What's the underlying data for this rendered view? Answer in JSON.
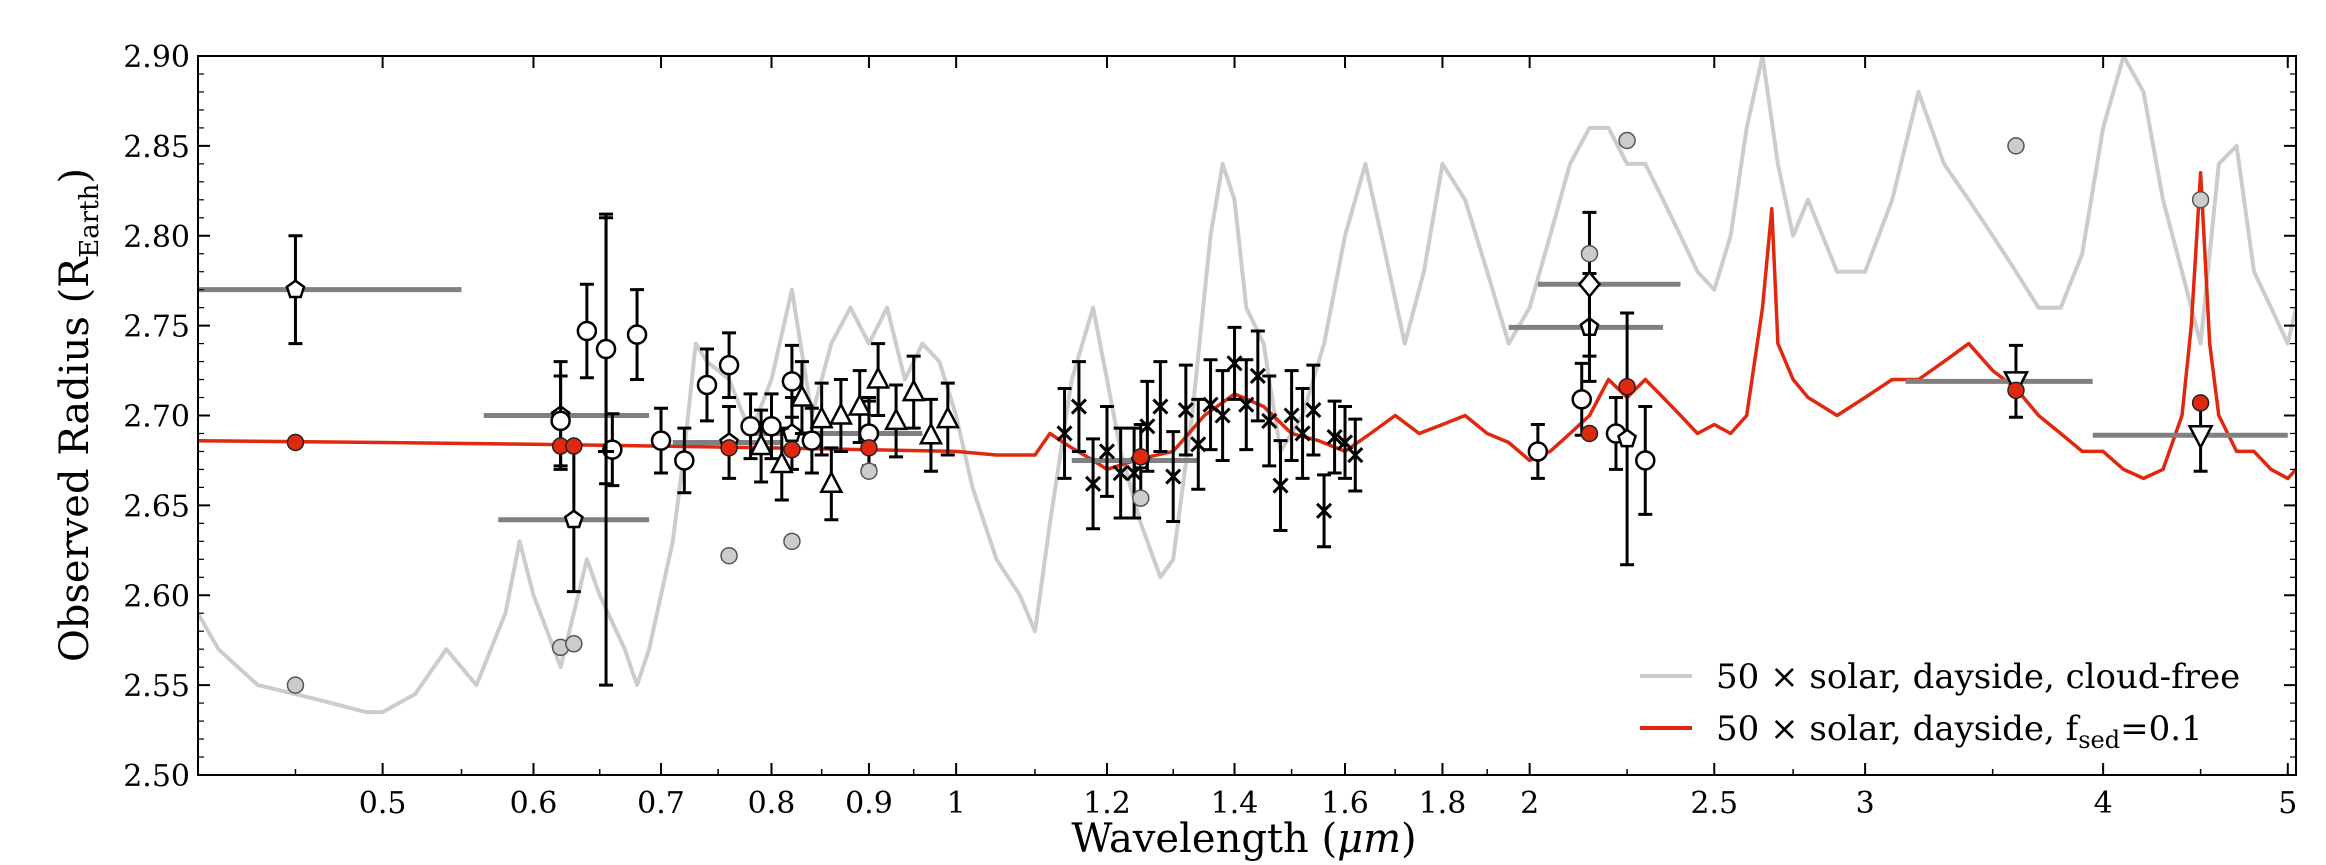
{
  "chart_data": {
    "type": "line",
    "xlabel": "Wavelength (μm)",
    "xlabel_prefix": "Wavelength (",
    "xlabel_unit": "μm",
    "xlabel_suffix": ")",
    "ylabel": "Observed Radius (R_Earth)",
    "ylabel_prefix": "Observed Radius (R",
    "ylabel_sub": "Earth",
    "ylabel_suffix": ")",
    "x_scale": "log",
    "xlim": [
      0.4,
      5.05
    ],
    "ylim": [
      2.5,
      2.9
    ],
    "x_ticks": [
      {
        "value": 0.5,
        "label": "0.5"
      },
      {
        "value": 0.6,
        "label": "0.6"
      },
      {
        "value": 0.7,
        "label": "0.7"
      },
      {
        "value": 0.8,
        "label": "0.8"
      },
      {
        "value": 0.9,
        "label": "0.9"
      },
      {
        "value": 1.0,
        "label": "1"
      },
      {
        "value": 1.2,
        "label": "1.2"
      },
      {
        "value": 1.4,
        "label": "1.4"
      },
      {
        "value": 1.6,
        "label": "1.6"
      },
      {
        "value": 1.8,
        "label": "1.8"
      },
      {
        "value": 2.0,
        "label": "2"
      },
      {
        "value": 2.5,
        "label": "2.5"
      },
      {
        "value": 3.0,
        "label": "3"
      },
      {
        "value": 4.0,
        "label": "4"
      },
      {
        "value": 5.0,
        "label": "5"
      }
    ],
    "y_ticks": [
      {
        "value": 2.5,
        "label": "2.50"
      },
      {
        "value": 2.55,
        "label": "2.55"
      },
      {
        "value": 2.6,
        "label": "2.60"
      },
      {
        "value": 2.65,
        "label": "2.65"
      },
      {
        "value": 2.7,
        "label": "2.70"
      },
      {
        "value": 2.75,
        "label": "2.75"
      },
      {
        "value": 2.8,
        "label": "2.80"
      },
      {
        "value": 2.85,
        "label": "2.85"
      },
      {
        "value": 2.9,
        "label": "2.90"
      }
    ],
    "legend_position": "lower-right",
    "models": [
      {
        "name": "50 × solar, dayside, cloud-free",
        "legend_text": "50 × solar, dayside, cloud-free",
        "color": "#cccccc",
        "x": [
          0.4,
          0.41,
          0.43,
          0.45,
          0.47,
          0.49,
          0.5,
          0.52,
          0.54,
          0.56,
          0.58,
          0.59,
          0.6,
          0.61,
          0.62,
          0.64,
          0.65,
          0.67,
          0.68,
          0.69,
          0.7,
          0.71,
          0.72,
          0.73,
          0.74,
          0.76,
          0.78,
          0.8,
          0.82,
          0.84,
          0.86,
          0.88,
          0.9,
          0.92,
          0.94,
          0.96,
          0.98,
          1.0,
          1.02,
          1.05,
          1.08,
          1.1,
          1.12,
          1.15,
          1.18,
          1.2,
          1.22,
          1.25,
          1.28,
          1.3,
          1.33,
          1.36,
          1.38,
          1.4,
          1.42,
          1.45,
          1.48,
          1.52,
          1.56,
          1.6,
          1.64,
          1.68,
          1.72,
          1.76,
          1.8,
          1.85,
          1.9,
          1.95,
          2.0,
          2.05,
          2.1,
          2.15,
          2.2,
          2.25,
          2.3,
          2.35,
          2.4,
          2.45,
          2.5,
          2.55,
          2.6,
          2.65,
          2.7,
          2.75,
          2.8,
          2.9,
          3.0,
          3.1,
          3.2,
          3.3,
          3.4,
          3.5,
          3.6,
          3.7,
          3.8,
          3.9,
          4.0,
          4.1,
          4.2,
          4.3,
          4.4,
          4.5,
          4.6,
          4.7,
          4.8,
          4.9,
          5.0,
          5.05
        ],
        "y": [
          2.59,
          2.57,
          2.55,
          2.545,
          2.54,
          2.535,
          2.535,
          2.545,
          2.57,
          2.55,
          2.59,
          2.63,
          2.6,
          2.58,
          2.56,
          2.62,
          2.6,
          2.57,
          2.55,
          2.57,
          2.6,
          2.63,
          2.68,
          2.74,
          2.73,
          2.72,
          2.69,
          2.72,
          2.77,
          2.7,
          2.74,
          2.76,
          2.74,
          2.76,
          2.72,
          2.74,
          2.73,
          2.7,
          2.66,
          2.62,
          2.6,
          2.58,
          2.64,
          2.72,
          2.76,
          2.72,
          2.68,
          2.64,
          2.61,
          2.62,
          2.7,
          2.8,
          2.84,
          2.82,
          2.76,
          2.74,
          2.68,
          2.7,
          2.74,
          2.8,
          2.84,
          2.79,
          2.74,
          2.78,
          2.84,
          2.82,
          2.78,
          2.74,
          2.76,
          2.8,
          2.84,
          2.86,
          2.86,
          2.84,
          2.84,
          2.82,
          2.8,
          2.78,
          2.77,
          2.8,
          2.86,
          2.9,
          2.84,
          2.8,
          2.82,
          2.78,
          2.78,
          2.82,
          2.88,
          2.84,
          2.82,
          2.8,
          2.78,
          2.76,
          2.76,
          2.79,
          2.86,
          2.9,
          2.88,
          2.82,
          2.78,
          2.74,
          2.84,
          2.85,
          2.78,
          2.76,
          2.74,
          2.76
        ]
      },
      {
        "name": "50 × solar, dayside, f_sed=0.1",
        "legend_text_prefix": "50 × solar, dayside, f",
        "legend_text_sub": "sed",
        "legend_text_suffix": "=0.1",
        "color": "#e0280f",
        "x": [
          0.4,
          0.5,
          0.6,
          0.7,
          0.8,
          0.9,
          1.0,
          1.05,
          1.1,
          1.12,
          1.15,
          1.18,
          1.2,
          1.25,
          1.3,
          1.35,
          1.4,
          1.45,
          1.5,
          1.55,
          1.6,
          1.65,
          1.7,
          1.75,
          1.8,
          1.85,
          1.9,
          1.95,
          2.0,
          2.05,
          2.1,
          2.15,
          2.2,
          2.25,
          2.3,
          2.35,
          2.4,
          2.45,
          2.5,
          2.55,
          2.6,
          2.65,
          2.68,
          2.7,
          2.75,
          2.8,
          2.85,
          2.9,
          3.0,
          3.1,
          3.2,
          3.3,
          3.4,
          3.5,
          3.6,
          3.7,
          3.8,
          3.9,
          4.0,
          4.1,
          4.2,
          4.3,
          4.4,
          4.45,
          4.5,
          4.55,
          4.6,
          4.7,
          4.8,
          4.9,
          5.0,
          5.05
        ],
        "y": [
          2.686,
          2.685,
          2.684,
          2.683,
          2.682,
          2.681,
          2.68,
          2.678,
          2.678,
          2.69,
          2.682,
          2.675,
          2.67,
          2.676,
          2.68,
          2.7,
          2.712,
          2.705,
          2.69,
          2.686,
          2.68,
          2.69,
          2.7,
          2.69,
          2.695,
          2.7,
          2.69,
          2.685,
          2.675,
          2.68,
          2.69,
          2.7,
          2.72,
          2.71,
          2.72,
          2.71,
          2.7,
          2.69,
          2.695,
          2.69,
          2.7,
          2.76,
          2.815,
          2.74,
          2.72,
          2.71,
          2.705,
          2.7,
          2.71,
          2.72,
          2.72,
          2.73,
          2.74,
          2.725,
          2.715,
          2.7,
          2.69,
          2.68,
          2.68,
          2.67,
          2.665,
          2.67,
          2.7,
          2.75,
          2.835,
          2.74,
          2.7,
          2.68,
          2.68,
          2.67,
          2.665,
          2.67
        ]
      }
    ],
    "model_points": [
      {
        "x": 0.45,
        "y": 2.685
      },
      {
        "x": 0.62,
        "y": 2.683
      },
      {
        "x": 0.63,
        "y": 2.683
      },
      {
        "x": 0.76,
        "y": 2.682
      },
      {
        "x": 0.82,
        "y": 2.681
      },
      {
        "x": 0.9,
        "y": 2.682
      },
      {
        "x": 1.25,
        "y": 2.677
      },
      {
        "x": 2.15,
        "y": 2.69
      },
      {
        "x": 2.25,
        "y": 2.716
      },
      {
        "x": 3.6,
        "y": 2.714
      },
      {
        "x": 4.5,
        "y": 2.707
      }
    ],
    "cloudfree_points": [
      {
        "x": 0.45,
        "y": 2.55
      },
      {
        "x": 0.62,
        "y": 2.571
      },
      {
        "x": 0.63,
        "y": 2.573
      },
      {
        "x": 0.76,
        "y": 2.622
      },
      {
        "x": 0.82,
        "y": 2.63
      },
      {
        "x": 0.9,
        "y": 2.669
      },
      {
        "x": 1.25,
        "y": 2.654
      },
      {
        "x": 2.15,
        "y": 2.79
      },
      {
        "x": 2.25,
        "y": 2.853
      },
      {
        "x": 3.6,
        "y": 2.85
      },
      {
        "x": 4.5,
        "y": 2.82
      }
    ],
    "band_observations": [
      {
        "x": 0.45,
        "y": 2.77,
        "err": 0.03,
        "xlo": 0.4,
        "xhi": 0.55,
        "marker": "pentagon"
      },
      {
        "x": 0.62,
        "y": 2.7,
        "err": 0.03,
        "xlo": 0.565,
        "xhi": 0.69,
        "marker": "pentagon"
      },
      {
        "x": 0.63,
        "y": 2.642,
        "err": 0.04,
        "xlo": 0.575,
        "xhi": 0.69,
        "marker": "pentagon"
      },
      {
        "x": 0.76,
        "y": 2.685,
        "err": 0.02,
        "xlo": 0.71,
        "xhi": 0.81,
        "marker": "pentagon"
      },
      {
        "x": 0.82,
        "y": 2.69,
        "err": 0.02,
        "xlo": 0.78,
        "xhi": 0.87,
        "marker": "pentagon"
      },
      {
        "x": 0.9,
        "y": 2.69,
        "err": 0.02,
        "xlo": 0.85,
        "xhi": 0.96,
        "marker": "pentagon"
      },
      {
        "x": 1.25,
        "y": 2.675,
        "err": 0.02,
        "xlo": 1.15,
        "xhi": 1.34,
        "marker": "pentagon"
      },
      {
        "x": 2.15,
        "y": 2.749,
        "err": 0.03,
        "xlo": 1.95,
        "xhi": 2.35,
        "marker": "pentagon"
      },
      {
        "x": 2.15,
        "y": 2.773,
        "err": 0.04,
        "xlo": 2.02,
        "xhi": 2.4,
        "marker": "diamond"
      },
      {
        "x": 3.6,
        "y": 2.719,
        "err": 0.02,
        "xlo": 3.15,
        "xhi": 3.95,
        "marker": "down-triangle"
      },
      {
        "x": 4.5,
        "y": 2.689,
        "err": 0.02,
        "xlo": 3.95,
        "xhi": 5.0,
        "marker": "down-triangle"
      }
    ],
    "observations": [
      {
        "x": 0.62,
        "y": 2.697,
        "err": 0.025,
        "marker": "circle"
      },
      {
        "x": 0.64,
        "y": 2.747,
        "err": 0.026,
        "marker": "circle"
      },
      {
        "x": 0.655,
        "y": 2.737,
        "err": 0.075,
        "marker": "circle"
      },
      {
        "x": 0.66,
        "y": 2.681,
        "err": 0.02,
        "marker": "circle"
      },
      {
        "x": 0.68,
        "y": 2.745,
        "err": 0.025,
        "marker": "circle"
      },
      {
        "x": 0.7,
        "y": 2.686,
        "err": 0.018,
        "marker": "circle"
      },
      {
        "x": 0.72,
        "y": 2.675,
        "err": 0.018,
        "marker": "circle"
      },
      {
        "x": 0.74,
        "y": 2.717,
        "err": 0.02,
        "marker": "circle"
      },
      {
        "x": 0.76,
        "y": 2.728,
        "err": 0.018,
        "marker": "circle"
      },
      {
        "x": 0.78,
        "y": 2.694,
        "err": 0.018,
        "marker": "circle"
      },
      {
        "x": 0.8,
        "y": 2.694,
        "err": 0.018,
        "marker": "circle"
      },
      {
        "x": 0.82,
        "y": 2.719,
        "err": 0.02,
        "marker": "circle"
      },
      {
        "x": 0.84,
        "y": 2.686,
        "err": 0.018,
        "marker": "circle"
      },
      {
        "x": 0.9,
        "y": 2.69,
        "err": 0.018,
        "marker": "circle"
      },
      {
        "x": 0.655,
        "y": 2.68,
        "err": 0.13,
        "marker": "plus"
      },
      {
        "x": 0.79,
        "y": 2.683,
        "err": 0.02,
        "marker": "up-triangle"
      },
      {
        "x": 0.81,
        "y": 2.673,
        "err": 0.02,
        "marker": "up-triangle"
      },
      {
        "x": 0.83,
        "y": 2.71,
        "err": 0.02,
        "marker": "up-triangle"
      },
      {
        "x": 0.85,
        "y": 2.698,
        "err": 0.02,
        "marker": "up-triangle"
      },
      {
        "x": 0.86,
        "y": 2.662,
        "err": 0.02,
        "marker": "up-triangle"
      },
      {
        "x": 0.87,
        "y": 2.7,
        "err": 0.02,
        "marker": "up-triangle"
      },
      {
        "x": 0.89,
        "y": 2.705,
        "err": 0.02,
        "marker": "up-triangle"
      },
      {
        "x": 0.91,
        "y": 2.72,
        "err": 0.02,
        "marker": "up-triangle"
      },
      {
        "x": 0.93,
        "y": 2.697,
        "err": 0.02,
        "marker": "up-triangle"
      },
      {
        "x": 0.95,
        "y": 2.713,
        "err": 0.02,
        "marker": "up-triangle"
      },
      {
        "x": 0.97,
        "y": 2.689,
        "err": 0.02,
        "marker": "up-triangle"
      },
      {
        "x": 0.99,
        "y": 2.698,
        "err": 0.02,
        "marker": "up-triangle"
      },
      {
        "x": 1.14,
        "y": 2.69,
        "err": 0.025,
        "marker": "x"
      },
      {
        "x": 1.16,
        "y": 2.705,
        "err": 0.025,
        "marker": "x"
      },
      {
        "x": 1.18,
        "y": 2.662,
        "err": 0.025,
        "marker": "x"
      },
      {
        "x": 1.2,
        "y": 2.68,
        "err": 0.025,
        "marker": "x"
      },
      {
        "x": 1.22,
        "y": 2.668,
        "err": 0.025,
        "marker": "x"
      },
      {
        "x": 1.24,
        "y": 2.668,
        "err": 0.025,
        "marker": "x"
      },
      {
        "x": 1.26,
        "y": 2.694,
        "err": 0.025,
        "marker": "x"
      },
      {
        "x": 1.28,
        "y": 2.705,
        "err": 0.025,
        "marker": "x"
      },
      {
        "x": 1.3,
        "y": 2.666,
        "err": 0.025,
        "marker": "x"
      },
      {
        "x": 1.32,
        "y": 2.703,
        "err": 0.025,
        "marker": "x"
      },
      {
        "x": 1.34,
        "y": 2.684,
        "err": 0.025,
        "marker": "x"
      },
      {
        "x": 1.36,
        "y": 2.706,
        "err": 0.025,
        "marker": "x"
      },
      {
        "x": 1.38,
        "y": 2.7,
        "err": 0.025,
        "marker": "x"
      },
      {
        "x": 1.4,
        "y": 2.729,
        "err": 0.02,
        "marker": "x"
      },
      {
        "x": 1.42,
        "y": 2.706,
        "err": 0.025,
        "marker": "x"
      },
      {
        "x": 1.44,
        "y": 2.722,
        "err": 0.025,
        "marker": "x"
      },
      {
        "x": 1.46,
        "y": 2.697,
        "err": 0.025,
        "marker": "x"
      },
      {
        "x": 1.48,
        "y": 2.661,
        "err": 0.025,
        "marker": "x"
      },
      {
        "x": 1.5,
        "y": 2.7,
        "err": 0.025,
        "marker": "x"
      },
      {
        "x": 1.52,
        "y": 2.69,
        "err": 0.025,
        "marker": "x"
      },
      {
        "x": 1.54,
        "y": 2.703,
        "err": 0.025,
        "marker": "x"
      },
      {
        "x": 1.56,
        "y": 2.647,
        "err": 0.02,
        "marker": "x"
      },
      {
        "x": 1.58,
        "y": 2.688,
        "err": 0.02,
        "marker": "x"
      },
      {
        "x": 1.6,
        "y": 2.685,
        "err": 0.02,
        "marker": "x"
      },
      {
        "x": 1.62,
        "y": 2.678,
        "err": 0.02,
        "marker": "x"
      },
      {
        "x": 2.02,
        "y": 2.68,
        "err": 0.015,
        "marker": "circle"
      },
      {
        "x": 2.13,
        "y": 2.709,
        "err": 0.02,
        "marker": "circle"
      },
      {
        "x": 2.22,
        "y": 2.69,
        "err": 0.02,
        "marker": "circle"
      },
      {
        "x": 2.25,
        "y": 2.687,
        "err": 0.07,
        "marker": "pentagon"
      },
      {
        "x": 2.3,
        "y": 2.675,
        "err": 0.03,
        "marker": "circle"
      }
    ]
  }
}
